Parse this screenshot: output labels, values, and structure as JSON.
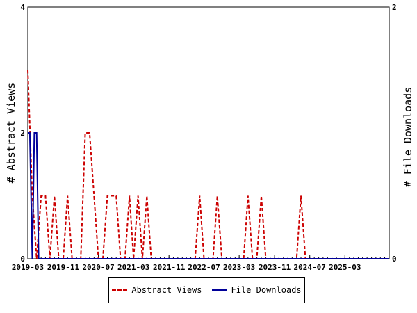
{
  "chart_data": {
    "type": "line",
    "title": "",
    "xlabel": "",
    "ylabel_left": "# Abstract Views",
    "ylabel_right": "# File Downloads",
    "xlim": [
      "2019-03-01",
      "2026-01-01"
    ],
    "ylim_left": [
      0,
      4
    ],
    "ylim_right": [
      0,
      2
    ],
    "yticks_left": [
      "0",
      "2",
      "4"
    ],
    "yticks_right": [
      "0",
      "2"
    ],
    "xtick_labels": [
      "2019-03",
      "2019-11",
      "2020-07",
      "2021-03",
      "2021-11",
      "2022-07",
      "2023-03",
      "2023-11",
      "2024-07",
      "2025-03"
    ],
    "grid": false,
    "legend_position": "bottom",
    "colors": {
      "abstract_views": "#cc0000",
      "file_downloads": "#000099"
    },
    "series": [
      {
        "name": "Abstract Views",
        "axis": "left",
        "style": "dashed",
        "points": [
          [
            "2019-03-01",
            3
          ],
          [
            "2019-04-01",
            1
          ],
          [
            "2019-05-01",
            0
          ],
          [
            "2019-06-01",
            1
          ],
          [
            "2019-07-01",
            1
          ],
          [
            "2019-08-01",
            0
          ],
          [
            "2019-09-01",
            1
          ],
          [
            "2019-10-01",
            0
          ],
          [
            "2019-11-01",
            0
          ],
          [
            "2019-12-01",
            1
          ],
          [
            "2020-01-01",
            0
          ],
          [
            "2020-02-01",
            0
          ],
          [
            "2020-03-01",
            0
          ],
          [
            "2020-04-01",
            2
          ],
          [
            "2020-05-01",
            2
          ],
          [
            "2020-06-01",
            1
          ],
          [
            "2020-07-01",
            0
          ],
          [
            "2020-08-01",
            0
          ],
          [
            "2020-09-01",
            1
          ],
          [
            "2020-10-01",
            1
          ],
          [
            "2020-11-01",
            1
          ],
          [
            "2020-12-01",
            0
          ],
          [
            "2021-01-01",
            0
          ],
          [
            "2021-02-01",
            1
          ],
          [
            "2021-03-01",
            0
          ],
          [
            "2021-04-01",
            1
          ],
          [
            "2021-05-01",
            0
          ],
          [
            "2021-06-01",
            1
          ],
          [
            "2021-07-01",
            0
          ],
          [
            "2021-08-01",
            0
          ],
          [
            "2022-05-01",
            0
          ],
          [
            "2022-06-01",
            1
          ],
          [
            "2022-07-01",
            0
          ],
          [
            "2022-09-01",
            0
          ],
          [
            "2022-10-01",
            1
          ],
          [
            "2022-11-01",
            0
          ],
          [
            "2023-04-01",
            0
          ],
          [
            "2023-05-01",
            1
          ],
          [
            "2023-06-01",
            0
          ],
          [
            "2023-07-01",
            0
          ],
          [
            "2023-08-01",
            1
          ],
          [
            "2023-09-01",
            0
          ],
          [
            "2024-04-01",
            0
          ],
          [
            "2024-05-01",
            1
          ],
          [
            "2024-06-01",
            0
          ],
          [
            "2026-01-01",
            0
          ]
        ]
      },
      {
        "name": "File Downloads",
        "axis": "right",
        "style": "solid",
        "points": [
          [
            "2019-03-01",
            1
          ],
          [
            "2019-03-15",
            1
          ],
          [
            "2019-04-01",
            0
          ],
          [
            "2019-04-15",
            1
          ],
          [
            "2019-05-01",
            1
          ],
          [
            "2019-05-15",
            0
          ],
          [
            "2019-06-01",
            0
          ],
          [
            "2026-01-01",
            0
          ]
        ]
      }
    ]
  }
}
